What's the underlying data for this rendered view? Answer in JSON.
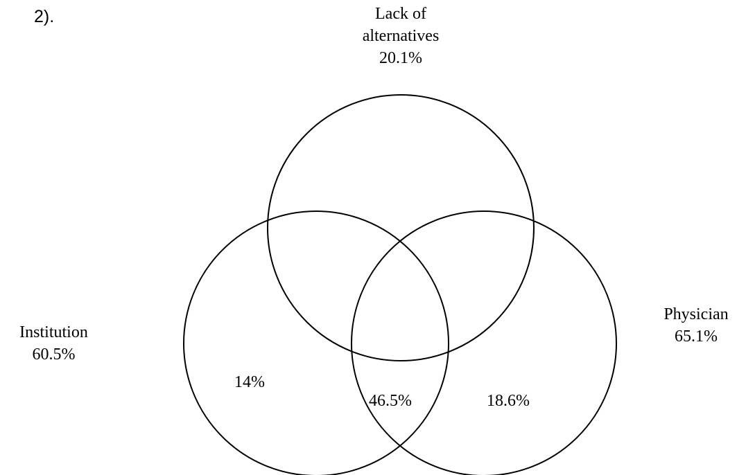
{
  "fragment_text": "2).",
  "sets": {
    "lack_of_alternatives": {
      "name_line1": "Lack of",
      "name_line2": "alternatives",
      "value": "20.1%"
    },
    "institution": {
      "name": "Institution",
      "value": "60.5%"
    },
    "physician": {
      "name": "Physician",
      "value": "65.1%"
    }
  },
  "regions": {
    "institution_only": "14%",
    "institution_physician": "46.5%",
    "physician_only": "18.6%"
  },
  "colors": {
    "stroke": "#000000",
    "background": "#ffffff",
    "text": "#000000"
  }
}
